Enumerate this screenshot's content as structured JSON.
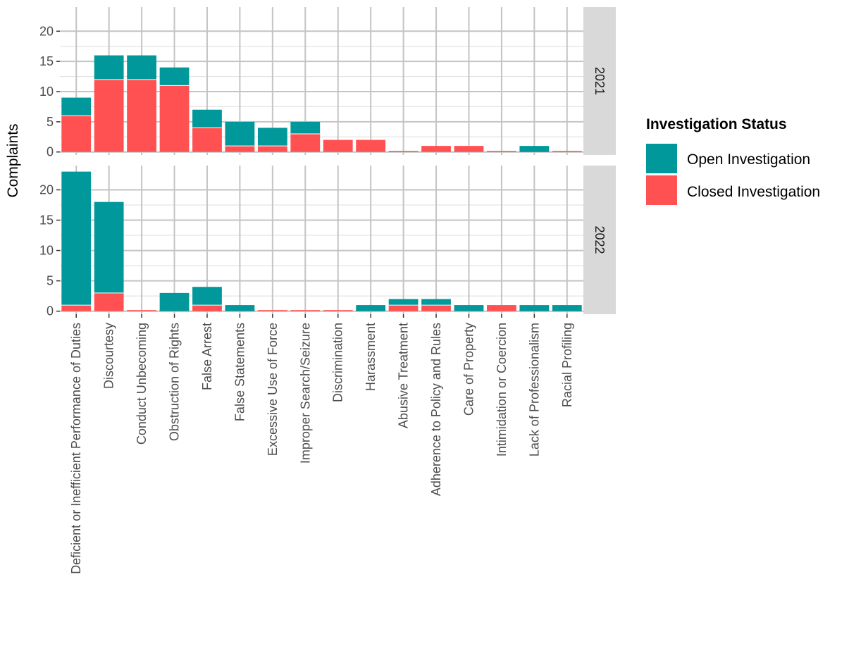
{
  "chart_data": {
    "type": "bar",
    "stacked": true,
    "ylabel": "Complaints",
    "xlabel": "",
    "categories": [
      "Deficient or Inefficient Performance of Duties",
      "Discourtesy",
      "Conduct Unbecoming",
      "Obstruction of Rights",
      "False Arrest",
      "False Statements",
      "Excessive Use of Force",
      "Improper Search/Seizure",
      "Discrimination",
      "Harassment",
      "Abusive Treatment",
      "Adherence to Policy and Rules",
      "Care of Property",
      "Intimidation or Coercion",
      "Lack of Professionalism",
      "Racial Profiling"
    ],
    "facets": [
      {
        "label": "2021",
        "ylim": [
          -0.5,
          24
        ],
        "yticks": [
          0,
          5,
          10,
          15,
          20
        ],
        "series": [
          {
            "name": "Closed Investigation",
            "values": [
              6,
              12,
              12,
              11,
              4,
              1,
              1,
              3,
              2,
              2,
              0,
              1,
              1,
              0,
              0,
              0
            ]
          },
          {
            "name": "Open Investigation",
            "values": [
              3,
              4,
              4,
              3,
              3,
              4,
              3,
              2,
              0,
              0,
              0,
              0,
              0,
              0,
              1,
              0
            ]
          }
        ]
      },
      {
        "label": "2022",
        "ylim": [
          -0.5,
          24
        ],
        "yticks": [
          0,
          5,
          10,
          15,
          20
        ],
        "series": [
          {
            "name": "Closed Investigation",
            "values": [
              1,
              3,
              0,
              0,
              1,
              0,
              0,
              0,
              0,
              0,
              1,
              1,
              0,
              1,
              0,
              0
            ]
          },
          {
            "name": "Open Investigation",
            "values": [
              22,
              15,
              0,
              3,
              3,
              1,
              0,
              0,
              0,
              1,
              1,
              1,
              1,
              0,
              1,
              1
            ]
          }
        ]
      }
    ],
    "legend": {
      "title": "Investigation Status",
      "position": "right",
      "items": [
        {
          "label": "Open Investigation",
          "color": "#00989A"
        },
        {
          "label": "Closed Investigation",
          "color": "#FF5151"
        }
      ]
    },
    "grid": true
  }
}
